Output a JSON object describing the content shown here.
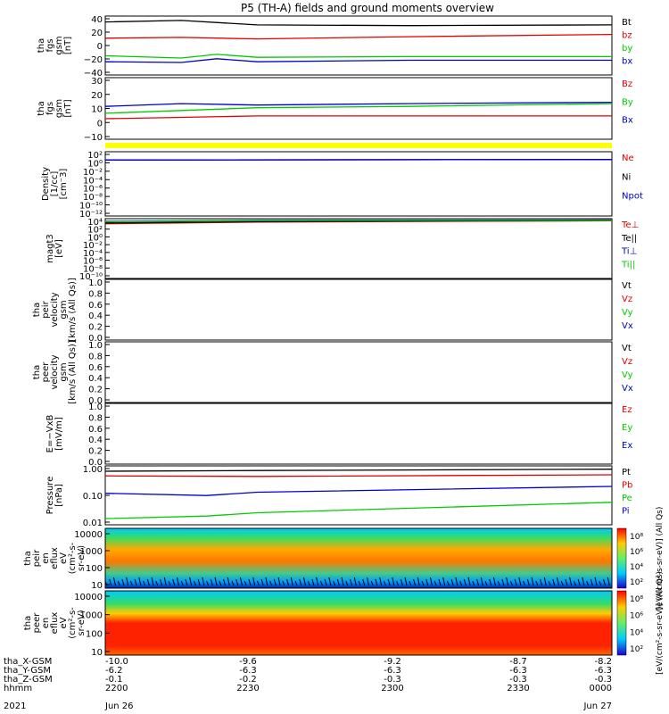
{
  "title": "P5 (TH-A) fields and ground moments overview",
  "colors": {
    "black": "#000000",
    "red": "#e00000",
    "green": "#00cc00",
    "blue": "#0000cc",
    "yellow": "#ffff00",
    "spec_low": "#00c8ff",
    "spec_mid": "#33dd66",
    "spec_high": "#ff2200"
  },
  "time_axis": {
    "rows": [
      {
        "label": "tha_X-GSM",
        "values": [
          "-10.0",
          "-9.6",
          "-9.2",
          "-8.7",
          "-8.2"
        ]
      },
      {
        "label": "tha_Y-GSM",
        "values": [
          "-6.2",
          "-6.3",
          "-6.3",
          "-6.3",
          "-6.3"
        ]
      },
      {
        "label": "tha_Z-GSM",
        "values": [
          "-0.1",
          "-0.2",
          "-0.3",
          "-0.3",
          "-0.3"
        ]
      },
      {
        "label": "hhmm",
        "values": [
          "2200",
          "2230",
          "2300",
          "2330",
          "0000"
        ]
      }
    ],
    "year": "2021",
    "date_start": "Jun 26",
    "date_end": "Jun 27"
  },
  "chart_data": [
    {
      "type": "line",
      "ylabel": [
        "tha",
        "fgs",
        "gsm",
        "[nT]"
      ],
      "ylim": [
        -40,
        40
      ],
      "yticks": [
        "40",
        "20",
        "0",
        "−20",
        "−40"
      ],
      "series": [
        {
          "name": "Bt",
          "color": "black",
          "x": [
            0,
            0.15,
            0.3,
            0.6,
            1.0
          ],
          "values": [
            32,
            34,
            28,
            27,
            28
          ]
        },
        {
          "name": "bz",
          "color": "red",
          "x": [
            0,
            0.15,
            0.3,
            0.6,
            1.0
          ],
          "values": [
            10,
            11,
            9,
            12,
            15
          ]
        },
        {
          "name": "by",
          "color": "green",
          "x": [
            0,
            0.15,
            0.22,
            0.3,
            0.6,
            1.0
          ],
          "values": [
            -14,
            -17,
            -12,
            -16,
            -15,
            -15
          ]
        },
        {
          "name": "bx",
          "color": "blue",
          "x": [
            0,
            0.15,
            0.22,
            0.3,
            0.6,
            1.0
          ],
          "values": [
            -22,
            -23,
            -18,
            -22,
            -20,
            -20
          ]
        }
      ]
    },
    {
      "type": "line",
      "ylabel": [
        "tha",
        "fgs",
        "gsm",
        "[nT]"
      ],
      "ylim": [
        -15,
        30
      ],
      "yticks": [
        "30",
        "20",
        "10",
        "0",
        "−10"
      ],
      "series": [
        {
          "name": "Bz",
          "color": "red",
          "x": [
            0,
            0.15,
            0.3,
            0.6,
            1.0
          ],
          "values": [
            0,
            1,
            2,
            2,
            2
          ]
        },
        {
          "name": "By",
          "color": "green",
          "x": [
            0,
            0.15,
            0.3,
            0.6,
            1.0
          ],
          "values": [
            4,
            6,
            8,
            9,
            11
          ]
        },
        {
          "name": "Bx",
          "color": "blue",
          "x": [
            0,
            0.15,
            0.3,
            0.6,
            1.0
          ],
          "values": [
            9,
            11,
            10,
            11,
            12
          ]
        }
      ]
    },
    {
      "type": "line",
      "ylabel": [
        "Density",
        "[1/cc]",
        "[cm⁻3]"
      ],
      "yscale": "log",
      "yticks": [
        "10²",
        "10⁰",
        "10⁻²",
        "10⁻⁴",
        "10⁻⁶",
        "10⁻⁸",
        "10⁻¹⁰",
        "10⁻¹²"
      ],
      "ylim": [
        -12,
        2
      ],
      "series": [
        {
          "name": "Ne",
          "color": "red",
          "x": [
            0,
            1.0
          ],
          "values": [
            0.2,
            0.3
          ]
        },
        {
          "name": "Ni",
          "color": "black",
          "x": [
            0,
            1.0
          ],
          "values": [
            0.2,
            0.3
          ]
        },
        {
          "name": "Npot",
          "color": "blue",
          "x": [
            0,
            1.0
          ],
          "values": [
            0.2,
            0.3
          ]
        }
      ]
    },
    {
      "type": "line",
      "ylabel": [
        "magt3",
        "[eV]"
      ],
      "yscale": "log",
      "yticks": [
        "10⁴",
        "10²",
        "10⁰",
        "10⁻²",
        "10⁻⁴",
        "10⁻⁶",
        "10⁻⁸",
        "10⁻¹⁰"
      ],
      "ylim": [
        -10,
        4
      ],
      "series": [
        {
          "name": "Te⊥",
          "color": "red",
          "x": [
            0,
            0.3,
            1.0
          ],
          "values": [
            2.8,
            3.2,
            3.5
          ]
        },
        {
          "name": "Te||",
          "color": "black",
          "x": [
            0,
            0.3,
            1.0
          ],
          "values": [
            3.0,
            3.3,
            3.6
          ]
        },
        {
          "name": "Ti⊥",
          "color": "blue",
          "x": [
            0,
            0.3,
            1.0
          ],
          "values": [
            3.4,
            3.6,
            3.7
          ]
        },
        {
          "name": "Ti||",
          "color": "green",
          "x": [
            0,
            0.3,
            1.0
          ],
          "values": [
            3.3,
            3.5,
            3.6
          ]
        }
      ]
    },
    {
      "type": "line",
      "ylabel": [
        "tha",
        "peir",
        "velocity",
        "gsm",
        "[km/s (All Qs)]"
      ],
      "ylim": [
        0,
        1
      ],
      "yticks": [
        "1.0",
        "0.8",
        "0.6",
        "0.4",
        "0.2",
        "0.0"
      ],
      "series": [
        {
          "name": "Vt",
          "color": "black",
          "x": [],
          "values": []
        },
        {
          "name": "Vz",
          "color": "red",
          "x": [],
          "values": []
        },
        {
          "name": "Vy",
          "color": "green",
          "x": [],
          "values": []
        },
        {
          "name": "Vx",
          "color": "blue",
          "x": [],
          "values": []
        }
      ]
    },
    {
      "type": "line",
      "ylabel": [
        "tha",
        "peer",
        "velocity",
        "gsm",
        "[km/s (All Qs)]"
      ],
      "ylim": [
        0,
        1
      ],
      "yticks": [
        "1.0",
        "0.8",
        "0.6",
        "0.4",
        "0.2",
        "0.0"
      ],
      "series": [
        {
          "name": "Vt",
          "color": "black",
          "x": [],
          "values": []
        },
        {
          "name": "Vz",
          "color": "red",
          "x": [],
          "values": []
        },
        {
          "name": "Vy",
          "color": "green",
          "x": [],
          "values": []
        },
        {
          "name": "Vx",
          "color": "blue",
          "x": [],
          "values": []
        }
      ]
    },
    {
      "type": "line",
      "ylabel": [
        "E=−VxB",
        "[mV/m]"
      ],
      "ylim": [
        0,
        1
      ],
      "yticks": [
        "1.0",
        "0.8",
        "0.6",
        "0.4",
        "0.2",
        "0.0"
      ],
      "series": [
        {
          "name": "Ez",
          "color": "red",
          "x": [],
          "values": []
        },
        {
          "name": "Ey",
          "color": "green",
          "x": [],
          "values": []
        },
        {
          "name": "Ex",
          "color": "blue",
          "x": [],
          "values": []
        }
      ]
    },
    {
      "type": "line",
      "ylabel": [
        "Pressure",
        "[nPa]"
      ],
      "yscale": "log",
      "ylim": [
        0.007,
        1.2
      ],
      "yticks": [
        "1.00",
        "0.10",
        "0.01"
      ],
      "series": [
        {
          "name": "Pt",
          "color": "black",
          "x": [
            0,
            0.3,
            1.0
          ],
          "values": [
            0.75,
            0.8,
            0.9
          ]
        },
        {
          "name": "Pb",
          "color": "red",
          "x": [
            0,
            0.3,
            1.0
          ],
          "values": [
            0.5,
            0.48,
            0.55
          ]
        },
        {
          "name": "Pe",
          "color": "green",
          "x": [
            0,
            0.2,
            0.3,
            1.0
          ],
          "values": [
            0.012,
            0.015,
            0.02,
            0.05
          ]
        },
        {
          "name": "Pi",
          "color": "blue",
          "x": [
            0,
            0.2,
            0.3,
            1.0
          ],
          "values": [
            0.11,
            0.09,
            0.12,
            0.2
          ]
        }
      ]
    },
    {
      "type": "heatmap",
      "ylabel": [
        "tha",
        "peir",
        "en",
        "eflux",
        "eV",
        "(cm²-s-",
        "sr-eV)"
      ],
      "yticks": [
        "10000",
        "1000",
        "100",
        "10"
      ],
      "colorbar_label": "[eV/(cm²-s-sr-eV)] (All Qs)",
      "colorbar_ticks": [
        "10⁸",
        "10⁶",
        "10⁴",
        "10²"
      ]
    },
    {
      "type": "heatmap",
      "ylabel": [
        "tha",
        "peer",
        "en",
        "eflux",
        "eV",
        "(cm²-s-",
        "sr-eV)"
      ],
      "yticks": [
        "10000",
        "1000",
        "100",
        "10"
      ],
      "colorbar_label": "[eV/(cm²-s-sr-eV)] (All Qs)",
      "colorbar_ticks": [
        "10⁸",
        "10⁶",
        "10⁴",
        "10²"
      ]
    }
  ]
}
